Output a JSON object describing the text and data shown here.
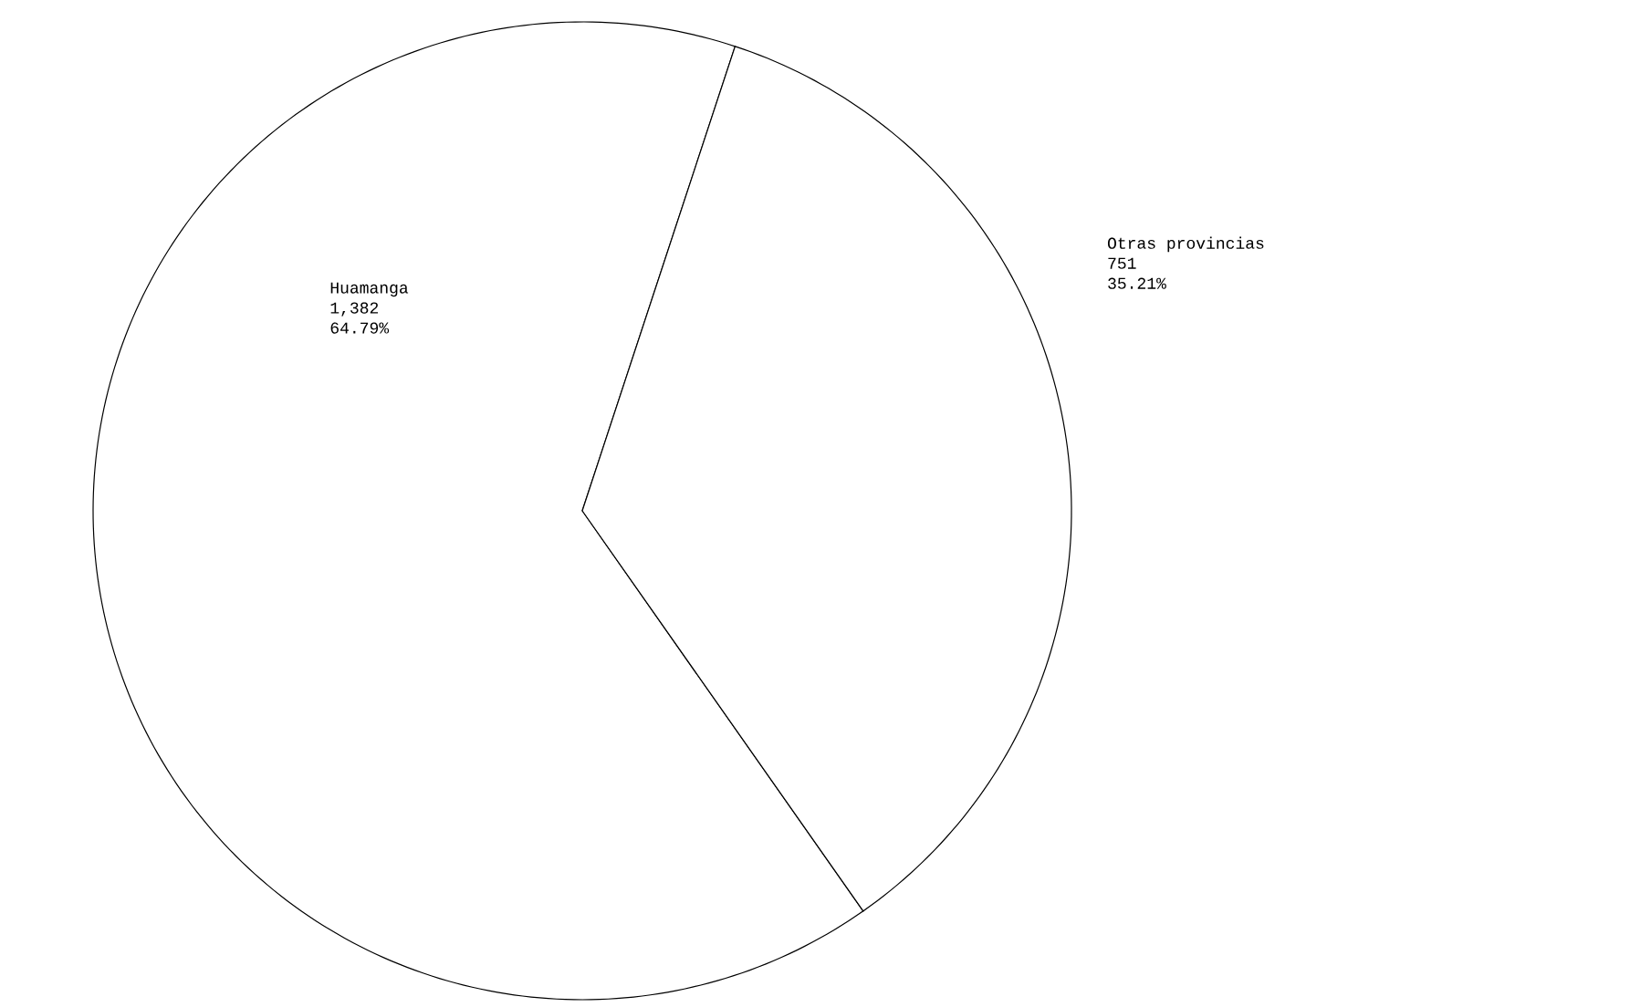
{
  "chart_data": {
    "type": "pie",
    "categories": [
      "Huamanga",
      "Otras provincias"
    ],
    "values": [
      1382,
      751
    ],
    "value_labels": [
      "1,382",
      "751"
    ],
    "annotations": [
      "64.79%",
      "35.21%"
    ],
    "colors": [
      "#ffffff",
      "#ffffff"
    ],
    "legend": false
  }
}
